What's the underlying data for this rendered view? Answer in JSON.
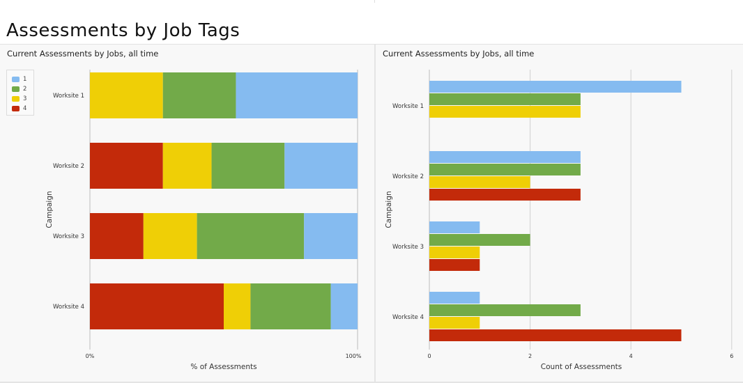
{
  "page": {
    "title": "Assessments by Job Tags"
  },
  "colors": {
    "1": "#85bbf0",
    "2": "#72aa49",
    "3": "#efcf06",
    "4": "#c32a0a"
  },
  "legend": {
    "placement": "top-left",
    "items": [
      {
        "label": "1",
        "color": "#85bbf0"
      },
      {
        "label": "2",
        "color": "#72aa49"
      },
      {
        "label": "3",
        "color": "#efcf06"
      },
      {
        "label": "4",
        "color": "#c32a0a"
      }
    ]
  },
  "chart_data": [
    {
      "type": "bar",
      "orientation": "horizontal",
      "stacked": true,
      "normalized": true,
      "title": "Current Assessments by Jobs, all time",
      "xlabel": "% of Assessments",
      "ylabel": "Campaign",
      "categories": [
        "Worksite 1",
        "Worksite 2",
        "Worksite 3",
        "Worksite 4"
      ],
      "xlim": [
        0,
        100
      ],
      "x_ticks": [
        "0%",
        "100%"
      ],
      "stack_order": [
        "4",
        "3",
        "2",
        "1"
      ],
      "series": [
        {
          "name": "1",
          "values": [
            45.5,
            27.3,
            20,
            10
          ]
        },
        {
          "name": "2",
          "values": [
            27.3,
            27.3,
            40,
            30
          ]
        },
        {
          "name": "3",
          "values": [
            27.3,
            18.2,
            20,
            10
          ]
        },
        {
          "name": "4",
          "values": [
            0,
            27.3,
            20,
            50
          ]
        }
      ],
      "legend": "top-left",
      "grid": false
    },
    {
      "type": "bar",
      "orientation": "horizontal",
      "stacked": false,
      "title": "Current Assessments by Jobs, all time",
      "xlabel": "Count of Assessments",
      "ylabel": "Campaign",
      "categories": [
        "Worksite 1",
        "Worksite 2",
        "Worksite 3",
        "Worksite 4"
      ],
      "xlim": [
        0,
        6
      ],
      "x_ticks": [
        "0",
        "2",
        "4",
        "6"
      ],
      "series": [
        {
          "name": "1",
          "values": [
            5,
            3,
            1,
            1
          ]
        },
        {
          "name": "2",
          "values": [
            3,
            3,
            2,
            3
          ]
        },
        {
          "name": "3",
          "values": [
            3,
            2,
            1,
            1
          ]
        },
        {
          "name": "4",
          "values": [
            0,
            3,
            1,
            5
          ]
        }
      ],
      "grid": true
    }
  ]
}
